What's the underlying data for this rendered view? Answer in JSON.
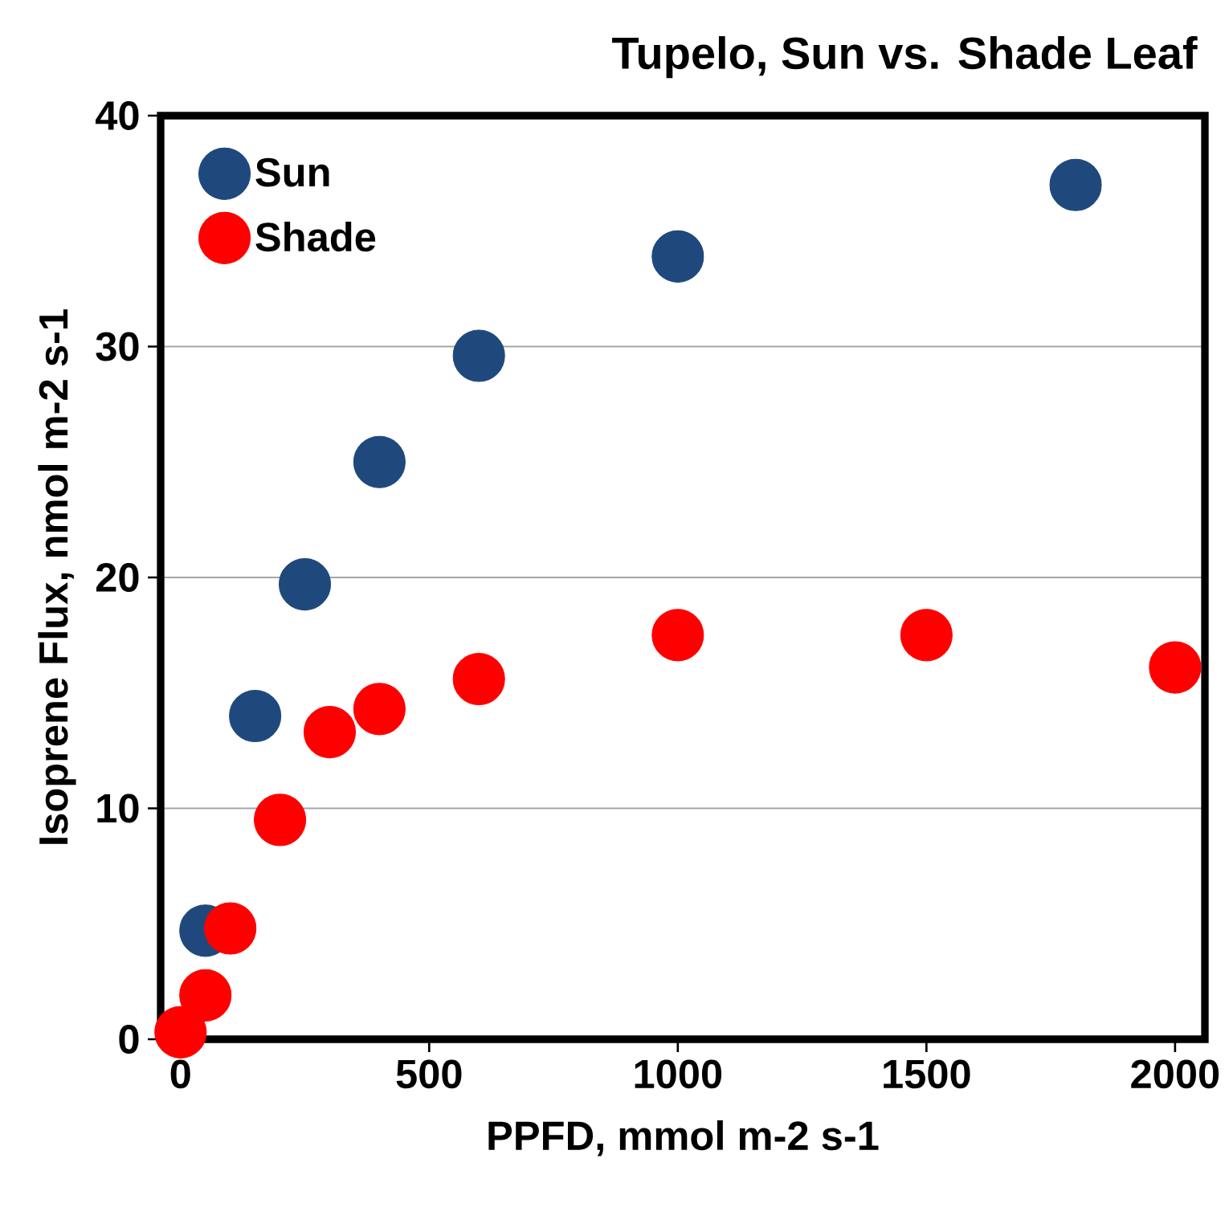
{
  "chart_data": {
    "type": "scatter",
    "title": "Tupelo, Sun vs. Shade Leaf",
    "xlabel": "PPFD, mmol m-2 s-1",
    "ylabel": "Isoprene Flux, nmol m-2 s-1",
    "xlim": [
      -40,
      2060
    ],
    "ylim": [
      0,
      40
    ],
    "xticks": [
      0,
      500,
      1000,
      1500,
      2000
    ],
    "yticks": [
      0,
      10,
      20,
      30,
      40
    ],
    "grid": "y",
    "legend": "top left",
    "marker": "circle",
    "series": [
      {
        "name": "Sun",
        "color": "#1f497d",
        "x": [
          50,
          150,
          250,
          400,
          600,
          1000,
          1800
        ],
        "values": [
          4.7,
          14.0,
          19.7,
          25.0,
          29.6,
          33.9,
          37.0
        ]
      },
      {
        "name": "Shade",
        "color": "#ff0000",
        "x": [
          0,
          50,
          100,
          200,
          300,
          400,
          600,
          1000,
          1500,
          2000
        ],
        "values": [
          0.3,
          1.9,
          4.8,
          9.5,
          13.3,
          14.3,
          15.6,
          17.5,
          17.5,
          16.1
        ]
      }
    ]
  }
}
